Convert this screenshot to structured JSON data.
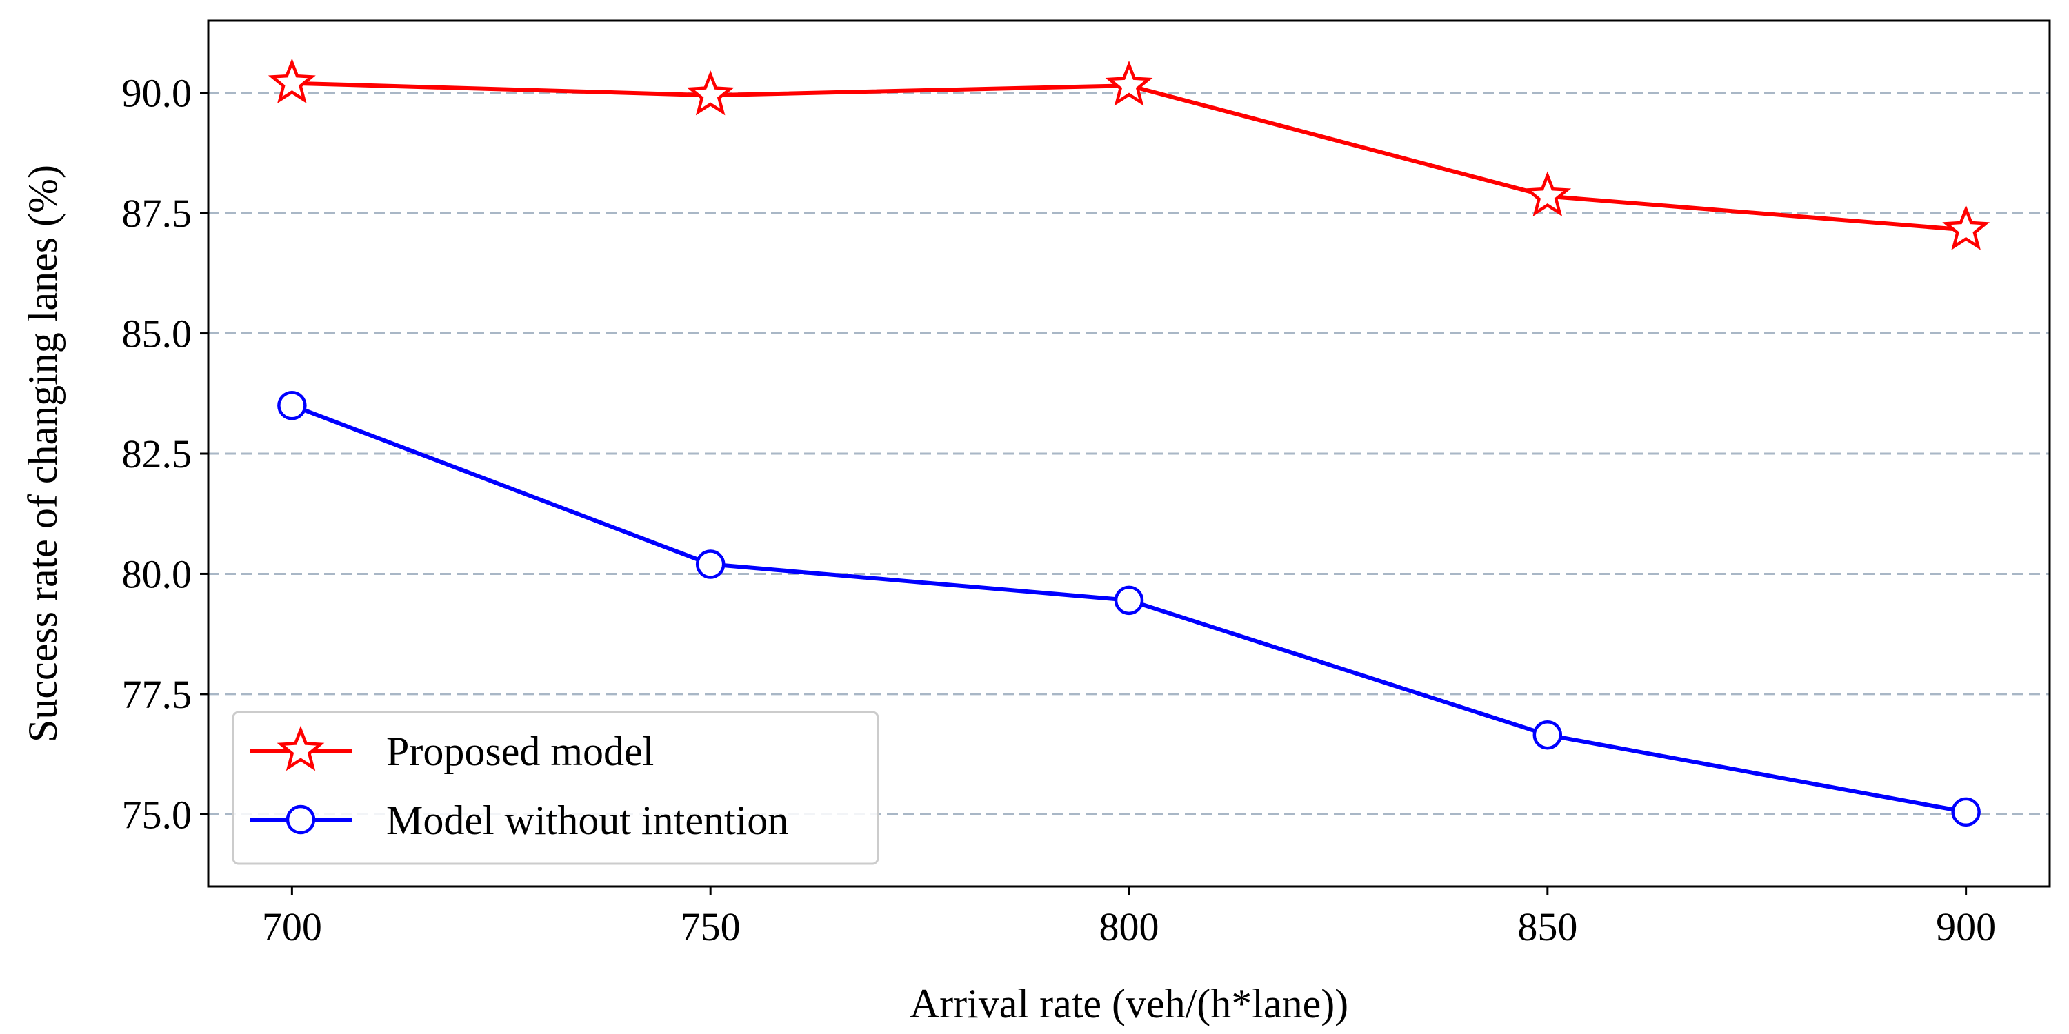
{
  "chart_data": {
    "type": "line",
    "title": "",
    "xlabel": "Arrival rate (veh/(h*lane))",
    "ylabel": "Success rate of changing lanes (%)",
    "x": [
      700,
      750,
      800,
      850,
      900
    ],
    "xlim": [
      690,
      910
    ],
    "ylim": [
      73.5,
      91.5
    ],
    "xticks": [
      "700",
      "750",
      "800",
      "850",
      "900"
    ],
    "yticks": [
      "75.0",
      "77.5",
      "80.0",
      "82.5",
      "85.0",
      "87.5",
      "90.0"
    ],
    "grid": "horizontal dashed",
    "legend_position": "lower-left",
    "series": [
      {
        "name": "Proposed model",
        "values": [
          90.2,
          89.95,
          90.15,
          87.85,
          87.15
        ],
        "color": "#ff0000",
        "marker": "star"
      },
      {
        "name": "Model without intention",
        "values": [
          83.5,
          80.2,
          79.45,
          76.65,
          75.05
        ],
        "color": "#0000ff",
        "marker": "circle"
      }
    ],
    "grid_color": "#a9b7c6"
  }
}
